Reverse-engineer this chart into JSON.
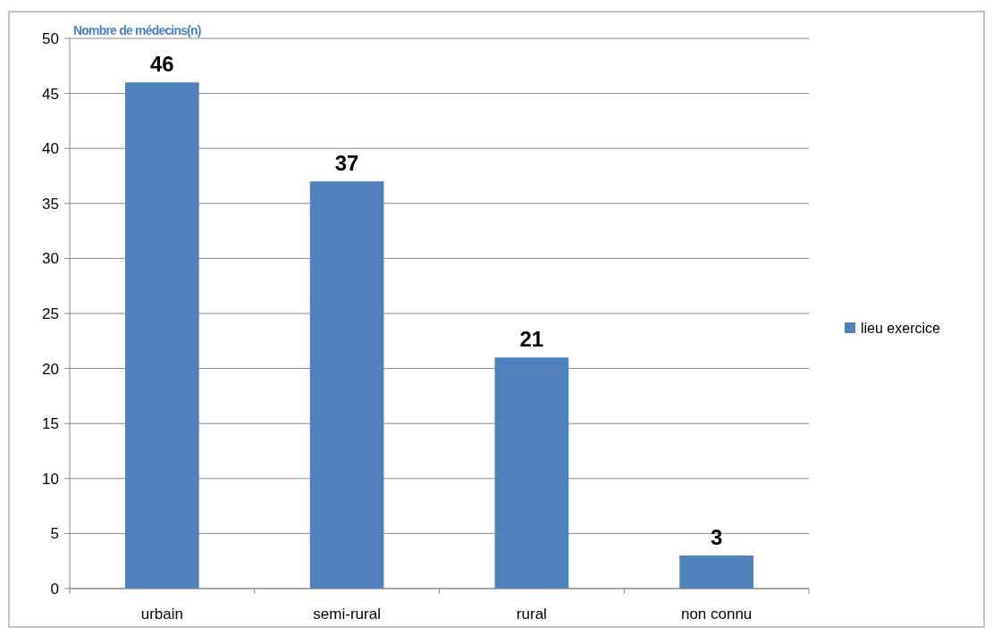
{
  "chart_data": {
    "type": "bar",
    "ylabel": "Nombre de médecins(n)",
    "categories": [
      "urbain",
      "semi-rural",
      "rural",
      "non connu"
    ],
    "series": [
      {
        "name": "lieu exercice",
        "color": "#4f81bd",
        "values": [
          46,
          37,
          21,
          3
        ]
      }
    ],
    "ylim": [
      0,
      50
    ],
    "yticks": [
      0,
      5,
      10,
      15,
      20,
      25,
      30,
      35,
      40,
      45,
      50
    ],
    "grid": "y",
    "legend": "right",
    "data_labels": true
  }
}
